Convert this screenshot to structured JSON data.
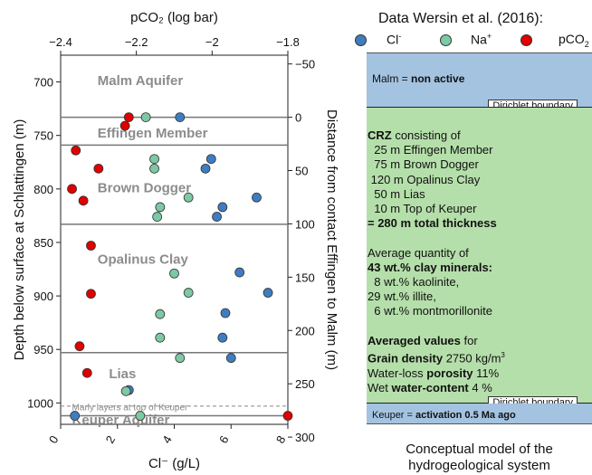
{
  "chart_data": {
    "type": "scatter",
    "xlabel_bottom": "Cl⁻ (g/L)",
    "xlim_bottom": [
      0,
      8
    ],
    "xticks_bottom": [
      "0",
      "2",
      "4",
      "6",
      "8"
    ],
    "xlabel_top": "pCO₂ (log bar)",
    "xlim_top": [
      -2.4,
      -1.8
    ],
    "xticks_top": [
      "−2.4",
      "−2.2",
      "−2",
      "−1.8"
    ],
    "ylabel_left": "Depth below surface at Schlattingen (m)",
    "ylim_left": [
      1020,
      675
    ],
    "yticks_left": [
      "700",
      "750",
      "800",
      "850",
      "900",
      "950",
      "1000"
    ],
    "ylabel_right": "Distance from contact Effingen to Malm (m)",
    "yticks_right": [
      "−50",
      "0",
      "50",
      "100",
      "150",
      "200",
      "250",
      "300"
    ],
    "boundaries": [
      733,
      759,
      833,
      953,
      1012
    ],
    "dashed_boundary": 1003,
    "units": [
      {
        "label": "Malm Aquifer",
        "x": 1.3,
        "y": 703
      },
      {
        "label": "Effingen Member",
        "x": 1.3,
        "y": 752
      },
      {
        "label": "Brown Dogger",
        "x": 1.3,
        "y": 803
      },
      {
        "label": "Opalinus Clay",
        "x": 1.3,
        "y": 870
      },
      {
        "label": "Lias",
        "x": 1.7,
        "y": 977
      },
      {
        "label": "Marly layers at top of Keuper",
        "x": 0.4,
        "y": 1007
      },
      {
        "label": "Keuper Aquifer",
        "x": 0.4,
        "y": 1020
      }
    ],
    "series": [
      {
        "name": "Cl⁻",
        "color": "#3f7dc0",
        "axis": "bottom",
        "points": [
          [
            4.2,
            733
          ],
          [
            5.3,
            772
          ],
          [
            5.1,
            781
          ],
          [
            5.7,
            817
          ],
          [
            6.9,
            808
          ],
          [
            5.5,
            826
          ],
          [
            6.3,
            878
          ],
          [
            7.3,
            897
          ],
          [
            5.8,
            916
          ],
          [
            5.7,
            939
          ],
          [
            6.0,
            958
          ],
          [
            2.4,
            988
          ],
          [
            0.5,
            1012
          ]
        ]
      },
      {
        "name": "Na⁺",
        "color": "#7cc9a4",
        "axis": "bottom",
        "points": [
          [
            3.0,
            733
          ],
          [
            3.3,
            772
          ],
          [
            3.3,
            781
          ],
          [
            3.5,
            817
          ],
          [
            4.5,
            808
          ],
          [
            3.4,
            826
          ],
          [
            4.0,
            879
          ],
          [
            4.5,
            897
          ],
          [
            3.5,
            917
          ],
          [
            3.5,
            939
          ],
          [
            4.2,
            958
          ],
          [
            2.3,
            989
          ],
          [
            2.8,
            1012
          ]
        ]
      },
      {
        "name": "pCO₂",
        "color": "#e00000",
        "axis": "top",
        "points": [
          [
            -2.22,
            733
          ],
          [
            -2.23,
            741
          ],
          [
            -2.36,
            764
          ],
          [
            -2.3,
            781
          ],
          [
            -2.37,
            800
          ],
          [
            -2.34,
            811
          ],
          [
            -2.32,
            853
          ],
          [
            -2.32,
            898
          ],
          [
            -2.35,
            947
          ],
          [
            -2.33,
            972
          ],
          [
            -1.8,
            1012
          ]
        ]
      }
    ]
  },
  "legend": {
    "title": "Data Wersin et al. (2016):",
    "items": [
      {
        "text": "Cl",
        "sup": "-",
        "color": "#3f7dc0"
      },
      {
        "text": "Na",
        "sup": "+",
        "color": "#7cc9a4"
      },
      {
        "text": "pCO",
        "sub": "2",
        "color": "#e00000"
      }
    ]
  },
  "panel": {
    "malm_label": "Malm = ",
    "malm_status": "non active",
    "dirichlet_top": "Dirichlet boundary",
    "dirichlet_bottom": "Dirichlet boundary",
    "keuper_label": "Keuper = ",
    "keuper_status": "activation 0.5 Ma ago",
    "crz_title": "CRZ",
    "crz_consisting": " consisting of",
    "crz_lines": [
      "  25 m Effingen Member",
      "  75 m Brown Dogger",
      " 120 m Opalinus Clay",
      "  50 m Lias",
      "  10 m Top of Keuper"
    ],
    "crz_total": "= 280 m total thickness",
    "clay_intro": "Average quantity of",
    "clay_bold": "43 wt.% clay minerals:",
    "clay_lines": [
      "  8 wt.% kaolinite,",
      "29 wt.% illite,",
      "  6 wt.% montmorillonite"
    ],
    "avg_title": "Averaged values",
    "avg_for": " for",
    "grain_label": "Grain density",
    "grain_value": " 2750 kg/m",
    "grain_exp": "3",
    "waterloss_prefix": "Water-loss ",
    "porosity_label": "porosity",
    "porosity_value": " 11%",
    "wet_prefix": "Wet ",
    "water_content_label": "water-content",
    "water_content_value": " 4 %"
  },
  "caption": {
    "line1": "Conceptual model of the",
    "line2": "hydrogeological system"
  }
}
